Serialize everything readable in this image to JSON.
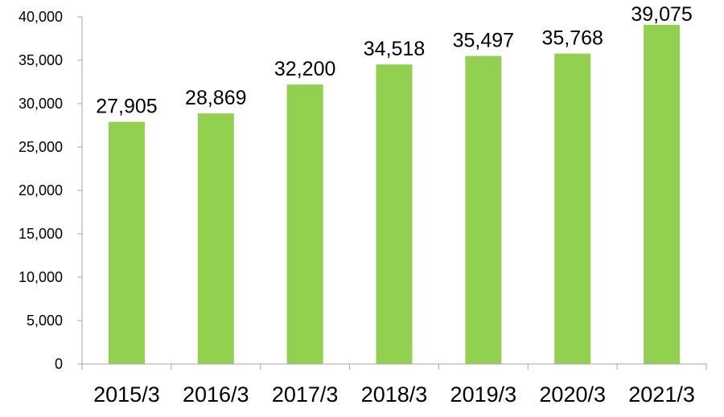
{
  "chart_data": {
    "type": "bar",
    "categories": [
      "2015/3",
      "2016/3",
      "2017/3",
      "2018/3",
      "2019/3",
      "2020/3",
      "2021/3"
    ],
    "values": [
      27905,
      28869,
      32200,
      34518,
      35497,
      35768,
      39075
    ],
    "data_labels": [
      "27,905",
      "28,869",
      "32,200",
      "34,518",
      "35,497",
      "35,768",
      "39,075"
    ],
    "y_ticks": [
      0,
      5000,
      10000,
      15000,
      20000,
      25000,
      30000,
      35000,
      40000
    ],
    "y_tick_labels": [
      "0",
      "5,000",
      "10,000",
      "15,000",
      "20,000",
      "25,000",
      "30,000",
      "35,000",
      "40,000"
    ],
    "ylim": [
      0,
      40000
    ],
    "title": "",
    "xlabel": "",
    "ylabel": "",
    "grid": false,
    "legend": "none",
    "bar_color": "#92d050",
    "axis_color": "#a6a6a6"
  }
}
